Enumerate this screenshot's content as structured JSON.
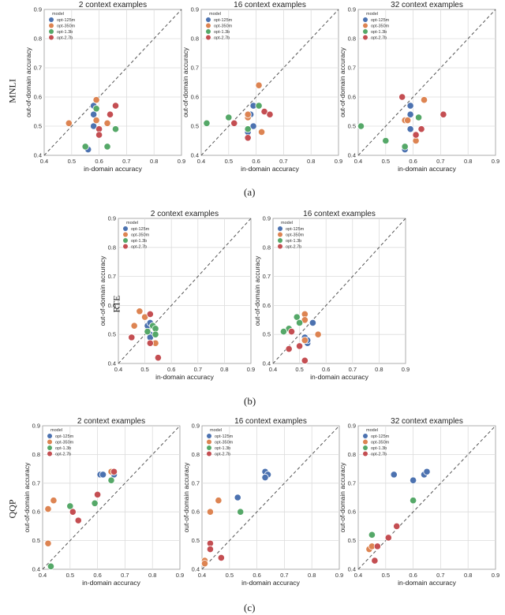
{
  "captions": {
    "a": "(a)",
    "b": "(b)",
    "c": "(c)"
  },
  "row_labels": {
    "mnli": "MNLI",
    "rte": "RTE",
    "qqp": "QQP"
  },
  "colors": {
    "opt-125m": "#4c72b0",
    "opt-350m": "#dd8452",
    "opt-1.3b": "#55a868",
    "opt-2.7b": "#c44e52",
    "grid": "#dcdcdc",
    "axis": "#444444",
    "diagonal": "#555555"
  },
  "chart_data": [
    {
      "id": "mnli-2",
      "type": "scatter",
      "title": "2 context examples",
      "xlabel": "in-domain accuracy",
      "ylabel": "out-of-domain accuracy",
      "xlim": [
        0.4,
        0.9
      ],
      "ylim": [
        0.4,
        0.9
      ],
      "ticks": [
        "0.4",
        "0.5",
        "0.6",
        "0.7",
        "0.8",
        "0.9"
      ],
      "legend_title": "model",
      "legend_position": "top-left",
      "series": [
        {
          "name": "opt-125m",
          "points": [
            [
              0.58,
              0.57
            ],
            [
              0.58,
              0.54
            ],
            [
              0.58,
              0.5
            ],
            [
              0.56,
              0.42
            ]
          ]
        },
        {
          "name": "opt-350m",
          "points": [
            [
              0.59,
              0.59
            ],
            [
              0.49,
              0.51
            ],
            [
              0.59,
              0.52
            ],
            [
              0.63,
              0.51
            ]
          ]
        },
        {
          "name": "opt-1.3b",
          "points": [
            [
              0.59,
              0.56
            ],
            [
              0.55,
              0.43
            ],
            [
              0.63,
              0.43
            ],
            [
              0.66,
              0.49
            ]
          ]
        },
        {
          "name": "opt-2.7b",
          "points": [
            [
              0.6,
              0.49
            ],
            [
              0.6,
              0.47
            ],
            [
              0.64,
              0.54
            ],
            [
              0.66,
              0.57
            ]
          ]
        }
      ]
    },
    {
      "id": "mnli-16",
      "type": "scatter",
      "title": "16 context examples",
      "xlabel": "in-domain accuracy",
      "ylabel": "out-of-domain accuracy",
      "xlim": [
        0.4,
        0.9
      ],
      "ylim": [
        0.4,
        0.9
      ],
      "ticks": [
        "0.4",
        "0.5",
        "0.6",
        "0.7",
        "0.8",
        "0.9"
      ],
      "legend_title": "model",
      "legend_position": "top-left",
      "series": [
        {
          "name": "opt-125m",
          "points": [
            [
              0.58,
              0.54
            ],
            [
              0.59,
              0.57
            ],
            [
              0.59,
              0.5
            ],
            [
              0.57,
              0.48
            ]
          ]
        },
        {
          "name": "opt-350m",
          "points": [
            [
              0.61,
              0.64
            ],
            [
              0.57,
              0.53
            ],
            [
              0.57,
              0.54
            ],
            [
              0.62,
              0.48
            ]
          ]
        },
        {
          "name": "opt-1.3b",
          "points": [
            [
              0.42,
              0.51
            ],
            [
              0.5,
              0.53
            ],
            [
              0.57,
              0.49
            ],
            [
              0.61,
              0.57
            ]
          ]
        },
        {
          "name": "opt-2.7b",
          "points": [
            [
              0.52,
              0.51
            ],
            [
              0.57,
              0.46
            ],
            [
              0.63,
              0.55
            ],
            [
              0.65,
              0.54
            ]
          ]
        }
      ]
    },
    {
      "id": "mnli-32",
      "type": "scatter",
      "title": "32 context examples",
      "xlabel": "in-domain accuracy",
      "ylabel": "out-of-domain accuracy",
      "xlim": [
        0.4,
        0.9
      ],
      "ylim": [
        0.4,
        0.9
      ],
      "ticks": [
        "0.4",
        "0.5",
        "0.6",
        "0.7",
        "0.8",
        "0.9"
      ],
      "legend_title": "model",
      "legend_position": "top-left",
      "series": [
        {
          "name": "opt-125m",
          "points": [
            [
              0.59,
              0.57
            ],
            [
              0.59,
              0.54
            ],
            [
              0.59,
              0.49
            ],
            [
              0.57,
              0.42
            ]
          ]
        },
        {
          "name": "opt-350m",
          "points": [
            [
              0.64,
              0.59
            ],
            [
              0.57,
              0.52
            ],
            [
              0.58,
              0.52
            ],
            [
              0.61,
              0.45
            ]
          ]
        },
        {
          "name": "opt-1.3b",
          "points": [
            [
              0.41,
              0.5
            ],
            [
              0.5,
              0.45
            ],
            [
              0.57,
              0.43
            ],
            [
              0.62,
              0.53
            ]
          ]
        },
        {
          "name": "opt-2.7b",
          "points": [
            [
              0.56,
              0.6
            ],
            [
              0.61,
              0.47
            ],
            [
              0.63,
              0.49
            ],
            [
              0.71,
              0.54
            ]
          ]
        }
      ]
    },
    {
      "id": "rte-2",
      "type": "scatter",
      "title": "2 context examples",
      "xlabel": "in-domain accuracy",
      "ylabel": "out-of-domain accuracy",
      "xlim": [
        0.4,
        0.9
      ],
      "ylim": [
        0.4,
        0.9
      ],
      "ticks": [
        "0.4",
        "0.5",
        "0.6",
        "0.7",
        "0.8",
        "0.9"
      ],
      "legend_title": "model",
      "legend_position": "top-left",
      "series": [
        {
          "name": "opt-125m",
          "points": [
            [
              0.51,
              0.53
            ],
            [
              0.52,
              0.54
            ],
            [
              0.52,
              0.5
            ],
            [
              0.52,
              0.49
            ]
          ]
        },
        {
          "name": "opt-350m",
          "points": [
            [
              0.48,
              0.58
            ],
            [
              0.46,
              0.53
            ],
            [
              0.5,
              0.56
            ],
            [
              0.54,
              0.47
            ]
          ]
        },
        {
          "name": "opt-1.3b",
          "points": [
            [
              0.53,
              0.53
            ],
            [
              0.54,
              0.52
            ],
            [
              0.54,
              0.5
            ],
            [
              0.51,
              0.51
            ]
          ]
        },
        {
          "name": "opt-2.7b",
          "points": [
            [
              0.45,
              0.49
            ],
            [
              0.52,
              0.57
            ],
            [
              0.52,
              0.47
            ],
            [
              0.55,
              0.42
            ]
          ]
        }
      ]
    },
    {
      "id": "rte-16",
      "type": "scatter",
      "title": "16 context examples",
      "xlabel": "in-domain accuracy",
      "ylabel": "out-of-domain accuracy",
      "xlim": [
        0.4,
        0.9
      ],
      "ylim": [
        0.4,
        0.9
      ],
      "ticks": [
        "0.4",
        "0.5",
        "0.6",
        "0.7",
        "0.8",
        "0.9"
      ],
      "legend_title": "model",
      "legend_position": "top-left",
      "series": [
        {
          "name": "opt-125m",
          "points": [
            [
              0.55,
              0.54
            ],
            [
              0.53,
              0.47
            ],
            [
              0.52,
              0.49
            ],
            [
              0.53,
              0.48
            ]
          ]
        },
        {
          "name": "opt-350m",
          "points": [
            [
              0.52,
              0.57
            ],
            [
              0.57,
              0.5
            ],
            [
              0.52,
              0.55
            ],
            [
              0.52,
              0.48
            ]
          ]
        },
        {
          "name": "opt-1.3b",
          "points": [
            [
              0.49,
              0.56
            ],
            [
              0.46,
              0.52
            ],
            [
              0.5,
              0.54
            ],
            [
              0.44,
              0.51
            ]
          ]
        },
        {
          "name": "opt-2.7b",
          "points": [
            [
              0.47,
              0.51
            ],
            [
              0.46,
              0.45
            ],
            [
              0.52,
              0.41
            ],
            [
              0.5,
              0.46
            ]
          ]
        }
      ]
    },
    {
      "id": "qqp-2",
      "type": "scatter",
      "title": "2 context examples",
      "xlabel": "in-domain accuracy",
      "ylabel": "out-of-domain accuracy",
      "xlim": [
        0.4,
        0.9
      ],
      "ylim": [
        0.4,
        0.9
      ],
      "ticks": [
        "0.4",
        "0.5",
        "0.6",
        "0.7",
        "0.8",
        "0.9"
      ],
      "legend_title": "model",
      "legend_position": "top-left",
      "series": [
        {
          "name": "opt-125m",
          "points": [
            [
              0.61,
              0.73
            ],
            [
              0.62,
              0.73
            ],
            [
              0.66,
              0.74
            ],
            [
              0.66,
              0.73
            ]
          ]
        },
        {
          "name": "opt-350m",
          "points": [
            [
              0.44,
              0.64
            ],
            [
              0.42,
              0.61
            ],
            [
              0.42,
              0.49
            ],
            [
              0.65,
              0.74
            ]
          ]
        },
        {
          "name": "opt-1.3b",
          "points": [
            [
              0.5,
              0.62
            ],
            [
              0.43,
              0.41
            ],
            [
              0.59,
              0.63
            ],
            [
              0.65,
              0.71
            ]
          ]
        },
        {
          "name": "opt-2.7b",
          "points": [
            [
              0.51,
              0.6
            ],
            [
              0.53,
              0.57
            ],
            [
              0.6,
              0.66
            ],
            [
              0.66,
              0.74
            ]
          ]
        }
      ]
    },
    {
      "id": "qqp-16",
      "type": "scatter",
      "title": "16 context examples",
      "xlabel": "in-domain accuracy",
      "ylabel": "out-of-domain accuracy",
      "xlim": [
        0.4,
        0.9
      ],
      "ylim": [
        0.4,
        0.9
      ],
      "ticks": [
        "0.4",
        "0.5",
        "0.6",
        "0.7",
        "0.8",
        "0.9"
      ],
      "legend_title": "model",
      "legend_position": "top-left",
      "series": [
        {
          "name": "opt-125m",
          "points": [
            [
              0.53,
              0.65
            ],
            [
              0.63,
              0.74
            ],
            [
              0.64,
              0.73
            ],
            [
              0.63,
              0.72
            ]
          ]
        },
        {
          "name": "opt-350m",
          "points": [
            [
              0.46,
              0.64
            ],
            [
              0.43,
              0.6
            ],
            [
              0.41,
              0.43
            ],
            [
              0.41,
              0.42
            ]
          ]
        },
        {
          "name": "opt-1.3b",
          "points": [
            [
              0.54,
              0.6
            ]
          ]
        },
        {
          "name": "opt-2.7b",
          "points": [
            [
              0.43,
              0.49
            ],
            [
              0.43,
              0.47
            ],
            [
              0.47,
              0.44
            ]
          ]
        }
      ]
    },
    {
      "id": "qqp-32",
      "type": "scatter",
      "title": "32 context examples",
      "xlabel": "in-domain accuracy",
      "ylabel": "out-of-domain accuracy",
      "xlim": [
        0.4,
        0.9
      ],
      "ylim": [
        0.4,
        0.9
      ],
      "ticks": [
        "0.4",
        "0.5",
        "0.6",
        "0.7",
        "0.8",
        "0.9"
      ],
      "legend_title": "model",
      "legend_position": "top-left",
      "series": [
        {
          "name": "opt-125m",
          "points": [
            [
              0.53,
              0.73
            ],
            [
              0.6,
              0.71
            ],
            [
              0.64,
              0.73
            ],
            [
              0.65,
              0.74
            ]
          ]
        },
        {
          "name": "opt-350m",
          "points": [
            [
              0.44,
              0.47
            ],
            [
              0.45,
              0.48
            ]
          ]
        },
        {
          "name": "opt-1.3b",
          "points": [
            [
              0.45,
              0.52
            ],
            [
              0.6,
              0.64
            ]
          ]
        },
        {
          "name": "opt-2.7b",
          "points": [
            [
              0.46,
              0.43
            ],
            [
              0.47,
              0.48
            ],
            [
              0.51,
              0.51
            ],
            [
              0.54,
              0.55
            ]
          ]
        }
      ]
    }
  ]
}
